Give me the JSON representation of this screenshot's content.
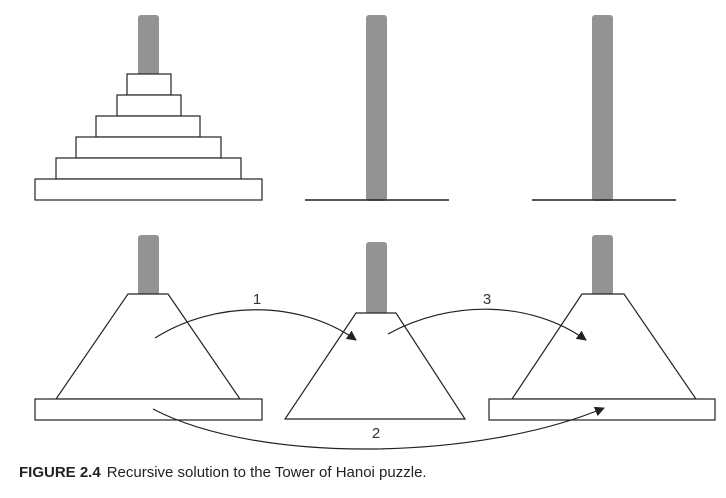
{
  "caption": {
    "label": "FIGURE 2.4",
    "text": "Recursive solution to the Tower of Hanoi puzzle."
  },
  "steps": [
    {
      "label": "1"
    },
    {
      "label": "2"
    },
    {
      "label": "3"
    }
  ],
  "colors": {
    "peg": "#939393",
    "stroke": "#222222",
    "background": "#ffffff"
  },
  "top_row": {
    "disk_count": 6,
    "peg_count": 3
  },
  "bottom_row": {
    "tower_count": 3
  }
}
